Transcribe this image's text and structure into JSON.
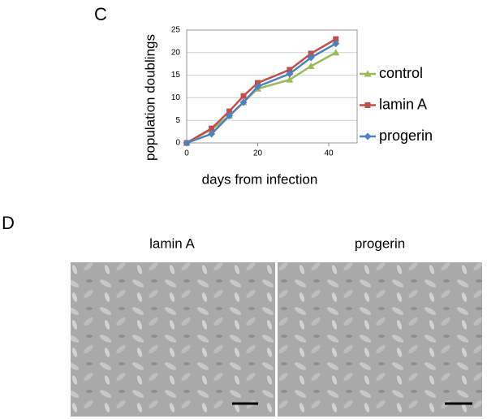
{
  "panel_labels": [
    "C",
    "D"
  ],
  "chart_data": {
    "type": "line",
    "x": [
      0,
      7,
      12,
      16,
      20,
      29,
      35,
      42
    ],
    "series": [
      {
        "name": "control",
        "color": "#9bbb59",
        "marker": "triangle",
        "values": [
          0,
          3,
          6,
          9,
          12,
          14,
          17,
          20
        ]
      },
      {
        "name": "lamin A",
        "color": "#c0504d",
        "marker": "square",
        "values": [
          0,
          3.2,
          7,
          10.4,
          13.3,
          16.2,
          19.8,
          23
        ]
      },
      {
        "name": "progerin",
        "color": "#4f81bd",
        "marker": "diamond",
        "values": [
          0,
          2,
          6,
          9,
          12.5,
          15.3,
          18.9,
          22
        ]
      }
    ],
    "x_label": "days from infection",
    "y_label": "population doublings",
    "xlim": [
      0,
      48
    ],
    "ylim": [
      0,
      25
    ],
    "xticks": [
      0,
      20,
      40
    ],
    "yticks": [
      0,
      5,
      10,
      15,
      20,
      25
    ],
    "grid": true
  },
  "images": [
    {
      "caption": "lamin A"
    },
    {
      "caption": "progerin"
    }
  ]
}
